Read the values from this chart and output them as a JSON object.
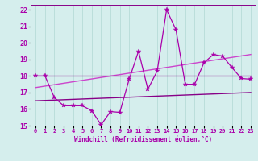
{
  "x": [
    0,
    1,
    2,
    3,
    4,
    5,
    6,
    7,
    8,
    9,
    10,
    11,
    12,
    13,
    14,
    15,
    16,
    17,
    18,
    19,
    20,
    21,
    22,
    23
  ],
  "line_main": [
    18.0,
    18.0,
    16.7,
    16.2,
    16.2,
    16.2,
    15.9,
    15.05,
    15.85,
    15.8,
    17.8,
    19.5,
    17.2,
    18.3,
    22.0,
    20.8,
    17.5,
    17.5,
    18.8,
    19.3,
    19.2,
    18.5,
    17.85,
    17.8
  ],
  "line_upper": [
    18.0,
    18.0,
    18.0,
    18.0,
    18.0,
    18.0,
    18.0,
    18.0,
    18.0,
    18.0,
    18.0,
    18.0,
    18.0,
    18.0,
    18.0,
    18.0,
    18.0,
    18.0,
    18.0,
    18.0,
    18.0,
    18.0,
    18.0,
    18.0
  ],
  "trend1_x": [
    0,
    23
  ],
  "trend1_y": [
    16.5,
    17.0
  ],
  "trend2_x": [
    0,
    23
  ],
  "trend2_y": [
    17.3,
    19.3
  ],
  "background_color": "#d5eeed",
  "line_color_main": "#aa00aa",
  "line_color_upper": "#880088",
  "trend_color1": "#880088",
  "trend_color2": "#cc44cc",
  "grid_color": "#b0d8d4",
  "text_color": "#aa00aa",
  "xlim": [
    -0.5,
    23.5
  ],
  "ylim": [
    15,
    22.3
  ],
  "yticks": [
    15,
    16,
    17,
    18,
    19,
    20,
    21,
    22
  ],
  "xticks": [
    0,
    1,
    2,
    3,
    4,
    5,
    6,
    7,
    8,
    9,
    10,
    11,
    12,
    13,
    14,
    15,
    16,
    17,
    18,
    19,
    20,
    21,
    22,
    23
  ],
  "xlabel": "Windchill (Refroidissement éolien,°C)",
  "marker": "*",
  "marker_size": 4
}
